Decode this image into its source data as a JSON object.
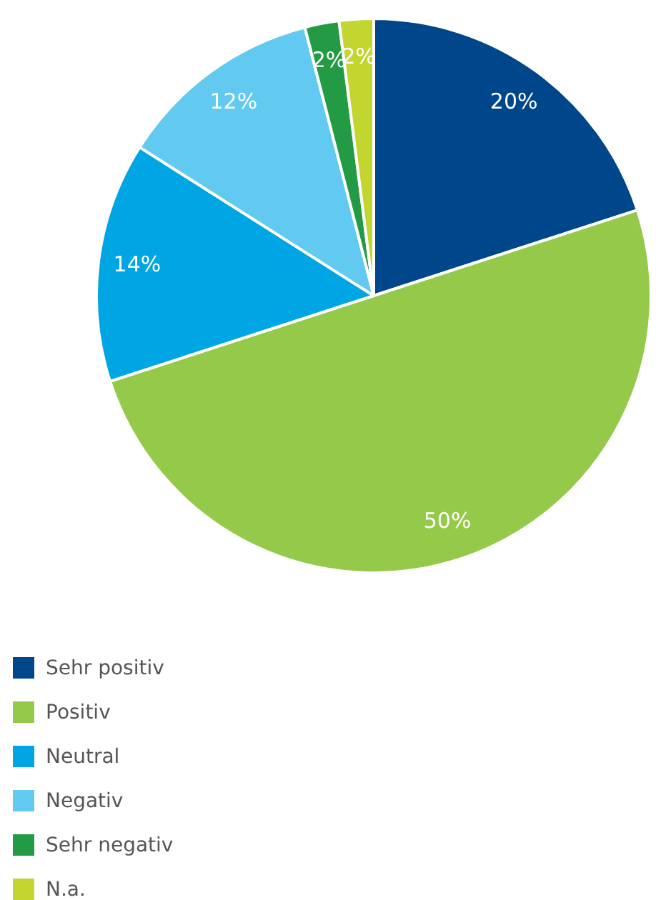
{
  "chart_data": {
    "type": "pie",
    "categories": [
      "Sehr positiv",
      "Positiv",
      "Neutral",
      "Negativ",
      "Sehr negativ",
      "N.a."
    ],
    "values": [
      20,
      50,
      14,
      12,
      2,
      2
    ],
    "colors": [
      "#00468b",
      "#95c94a",
      "#00a5e3",
      "#62c9f0",
      "#239b45",
      "#c3d52f"
    ],
    "value_labels": [
      "20%",
      "50%",
      "14%",
      "12%",
      "2%",
      "2%"
    ],
    "legend": "bottom left"
  }
}
